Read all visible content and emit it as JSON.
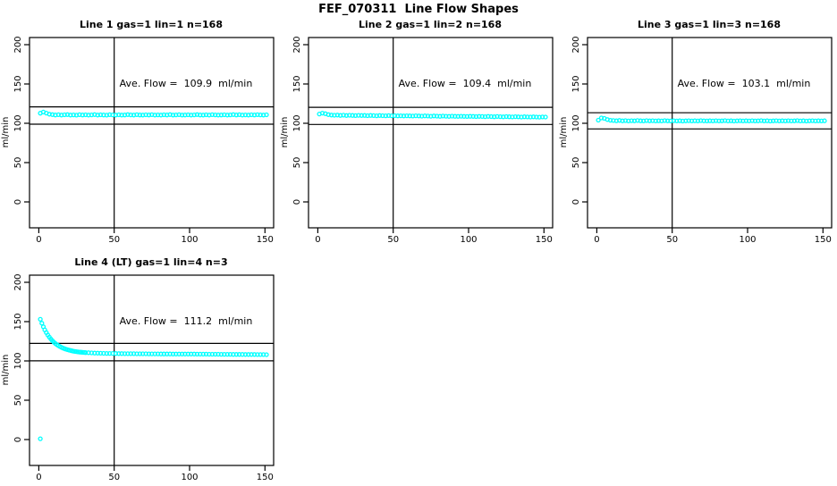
{
  "main_title": "FEF_070311  Line Flow Shapes",
  "colors": {
    "points": "#00FFFF",
    "axis": "#000000",
    "background": "#FFFFFF"
  },
  "chart_data": [
    {
      "type": "scatter",
      "title": "Line 1 gas=1 lin=1 n=168",
      "annotation": "Ave. Flow =  109.9  ml/min",
      "ave_flow_ml_min": 109.9,
      "xlabel": "",
      "ylabel": "ml/min",
      "x_ticks": [
        0,
        50,
        100,
        150
      ],
      "y_ticks": [
        0,
        50,
        100,
        150,
        200
      ],
      "xlim": [
        0,
        150
      ],
      "ylim": [
        0,
        200
      ],
      "grid": false,
      "vline_x": 50,
      "hlines": [
        120.9,
        98.9
      ],
      "points": [
        [
          1,
          112.8
        ],
        [
          3,
          114.3
        ],
        [
          5,
          113.0
        ],
        [
          7,
          111.6
        ],
        [
          9,
          111.0
        ],
        [
          11,
          110.6
        ],
        [
          13,
          110.9
        ],
        [
          15,
          110.4
        ],
        [
          17,
          110.8
        ],
        [
          19,
          111.0
        ],
        [
          21,
          110.5
        ],
        [
          23,
          110.7
        ],
        [
          25,
          110.3
        ],
        [
          27,
          110.9
        ],
        [
          29,
          110.6
        ],
        [
          31,
          110.8
        ],
        [
          33,
          110.4
        ],
        [
          35,
          110.7
        ],
        [
          37,
          111.0
        ],
        [
          39,
          110.5
        ],
        [
          41,
          110.8
        ],
        [
          43,
          110.6
        ],
        [
          45,
          110.3
        ],
        [
          47,
          110.9
        ],
        [
          49,
          110.7
        ],
        [
          51,
          110.5
        ],
        [
          53,
          110.8
        ],
        [
          55,
          110.4
        ],
        [
          57,
          110.6
        ],
        [
          59,
          111.0
        ],
        [
          61,
          110.7
        ],
        [
          63,
          110.5
        ],
        [
          65,
          110.9
        ],
        [
          67,
          110.6
        ],
        [
          69,
          110.4
        ],
        [
          71,
          110.8
        ],
        [
          73,
          110.6
        ],
        [
          75,
          110.9
        ],
        [
          77,
          110.5
        ],
        [
          79,
          110.7
        ],
        [
          81,
          110.4
        ],
        [
          83,
          110.8
        ],
        [
          85,
          110.6
        ],
        [
          87,
          111.0
        ],
        [
          89,
          110.5
        ],
        [
          91,
          110.7
        ],
        [
          93,
          110.9
        ],
        [
          95,
          110.4
        ],
        [
          97,
          110.6
        ],
        [
          99,
          110.8
        ],
        [
          101,
          110.5
        ],
        [
          103,
          110.7
        ],
        [
          105,
          111.0
        ],
        [
          107,
          110.6
        ],
        [
          109,
          110.4
        ],
        [
          111,
          110.8
        ],
        [
          113,
          110.5
        ],
        [
          115,
          110.9
        ],
        [
          117,
          110.7
        ],
        [
          119,
          110.4
        ],
        [
          121,
          110.6
        ],
        [
          123,
          110.8
        ],
        [
          125,
          110.5
        ],
        [
          127,
          110.7
        ],
        [
          129,
          111.0
        ],
        [
          131,
          110.6
        ],
        [
          133,
          110.9
        ],
        [
          135,
          110.4
        ],
        [
          137,
          110.7
        ],
        [
          139,
          110.5
        ],
        [
          141,
          110.8
        ],
        [
          143,
          110.6
        ],
        [
          145,
          110.9
        ],
        [
          147,
          110.7
        ],
        [
          149,
          110.5
        ],
        [
          151,
          110.8
        ]
      ]
    },
    {
      "type": "scatter",
      "title": "Line 2 gas=1 lin=2 n=168",
      "annotation": "Ave. Flow =  109.4  ml/min",
      "ave_flow_ml_min": 109.4,
      "xlabel": "",
      "ylabel": "ml/min",
      "x_ticks": [
        0,
        50,
        100,
        150
      ],
      "y_ticks": [
        0,
        50,
        100,
        150,
        200
      ],
      "xlim": [
        0,
        150
      ],
      "ylim": [
        0,
        200
      ],
      "grid": false,
      "vline_x": 50,
      "hlines": [
        120.3,
        98.5
      ],
      "points": [
        [
          1,
          111.8
        ],
        [
          3,
          112.9
        ],
        [
          5,
          112.2
        ],
        [
          7,
          111.0
        ],
        [
          9,
          110.4
        ],
        [
          11,
          110.2
        ],
        [
          13,
          110.4
        ],
        [
          15,
          110.0
        ],
        [
          17,
          110.3
        ],
        [
          19,
          109.9
        ],
        [
          21,
          110.2
        ],
        [
          23,
          110.0
        ],
        [
          25,
          109.8
        ],
        [
          27,
          110.1
        ],
        [
          29,
          109.9
        ],
        [
          31,
          110.0
        ],
        [
          33,
          109.7
        ],
        [
          35,
          110.0
        ],
        [
          37,
          109.8
        ],
        [
          39,
          109.6
        ],
        [
          41,
          109.9
        ],
        [
          43,
          109.7
        ],
        [
          45,
          109.5
        ],
        [
          47,
          109.8
        ],
        [
          49,
          109.6
        ],
        [
          51,
          109.7
        ],
        [
          53,
          109.4
        ],
        [
          55,
          109.6
        ],
        [
          57,
          109.3
        ],
        [
          59,
          109.5
        ],
        [
          61,
          109.4
        ],
        [
          63,
          109.2
        ],
        [
          65,
          109.5
        ],
        [
          67,
          109.3
        ],
        [
          69,
          109.1
        ],
        [
          71,
          109.4
        ],
        [
          73,
          109.2
        ],
        [
          75,
          109.0
        ],
        [
          77,
          109.3
        ],
        [
          79,
          109.1
        ],
        [
          81,
          108.9
        ],
        [
          83,
          109.2
        ],
        [
          85,
          109.0
        ],
        [
          87,
          108.8
        ],
        [
          89,
          109.1
        ],
        [
          91,
          108.9
        ],
        [
          93,
          108.7
        ],
        [
          95,
          109.0
        ],
        [
          97,
          108.8
        ],
        [
          99,
          108.6
        ],
        [
          101,
          108.9
        ],
        [
          103,
          108.7
        ],
        [
          105,
          108.5
        ],
        [
          107,
          108.8
        ],
        [
          109,
          108.6
        ],
        [
          111,
          108.4
        ],
        [
          113,
          108.7
        ],
        [
          115,
          108.5
        ],
        [
          117,
          108.3
        ],
        [
          119,
          108.6
        ],
        [
          121,
          108.4
        ],
        [
          123,
          108.2
        ],
        [
          125,
          108.5
        ],
        [
          127,
          108.3
        ],
        [
          129,
          108.1
        ],
        [
          131,
          108.4
        ],
        [
          133,
          108.2
        ],
        [
          135,
          108.0
        ],
        [
          137,
          108.3
        ],
        [
          139,
          108.1
        ],
        [
          141,
          107.9
        ],
        [
          143,
          108.2
        ],
        [
          145,
          108.0
        ],
        [
          147,
          107.8
        ],
        [
          149,
          108.1
        ],
        [
          151,
          107.9
        ]
      ]
    },
    {
      "type": "scatter",
      "title": "Line 3 gas=1 lin=3 n=168",
      "annotation": "Ave. Flow =  103.1  ml/min",
      "ave_flow_ml_min": 103.1,
      "xlabel": "",
      "ylabel": "ml/min",
      "x_ticks": [
        0,
        50,
        100,
        150
      ],
      "y_ticks": [
        0,
        50,
        100,
        150,
        200
      ],
      "xlim": [
        0,
        150
      ],
      "ylim": [
        0,
        200
      ],
      "grid": false,
      "vline_x": 50,
      "hlines": [
        113.4,
        92.8
      ],
      "points": [
        [
          1,
          104.0
        ],
        [
          3,
          106.8
        ],
        [
          5,
          106.2
        ],
        [
          7,
          104.8
        ],
        [
          9,
          103.9
        ],
        [
          11,
          103.5
        ],
        [
          13,
          103.2
        ],
        [
          15,
          103.6
        ],
        [
          17,
          103.1
        ],
        [
          19,
          103.4
        ],
        [
          21,
          103.0
        ],
        [
          23,
          103.3
        ],
        [
          25,
          103.1
        ],
        [
          27,
          103.5
        ],
        [
          29,
          103.2
        ],
        [
          31,
          103.0
        ],
        [
          33,
          103.4
        ],
        [
          35,
          103.1
        ],
        [
          37,
          103.3
        ],
        [
          39,
          102.9
        ],
        [
          41,
          103.2
        ],
        [
          43,
          103.0
        ],
        [
          45,
          103.4
        ],
        [
          47,
          103.1
        ],
        [
          49,
          102.9
        ],
        [
          51,
          103.3
        ],
        [
          53,
          103.0
        ],
        [
          55,
          103.2
        ],
        [
          57,
          102.8
        ],
        [
          59,
          103.1
        ],
        [
          61,
          103.3
        ],
        [
          63,
          102.9
        ],
        [
          65,
          103.2
        ],
        [
          67,
          103.0
        ],
        [
          69,
          103.4
        ],
        [
          71,
          103.1
        ],
        [
          73,
          102.9
        ],
        [
          75,
          103.2
        ],
        [
          77,
          103.0
        ],
        [
          79,
          103.3
        ],
        [
          81,
          102.9
        ],
        [
          83,
          103.1
        ],
        [
          85,
          103.4
        ],
        [
          87,
          103.0
        ],
        [
          89,
          103.2
        ],
        [
          91,
          102.8
        ],
        [
          93,
          103.1
        ],
        [
          95,
          103.3
        ],
        [
          97,
          102.9
        ],
        [
          99,
          103.2
        ],
        [
          101,
          103.0
        ],
        [
          103,
          103.3
        ],
        [
          105,
          102.9
        ],
        [
          107,
          103.1
        ],
        [
          109,
          103.4
        ],
        [
          111,
          103.0
        ],
        [
          113,
          103.2
        ],
        [
          115,
          102.8
        ],
        [
          117,
          103.1
        ],
        [
          119,
          103.3
        ],
        [
          121,
          102.9
        ],
        [
          123,
          103.2
        ],
        [
          125,
          103.0
        ],
        [
          127,
          103.3
        ],
        [
          129,
          102.9
        ],
        [
          131,
          103.1
        ],
        [
          133,
          103.4
        ],
        [
          135,
          103.0
        ],
        [
          137,
          103.2
        ],
        [
          139,
          102.8
        ],
        [
          141,
          103.1
        ],
        [
          143,
          103.3
        ],
        [
          145,
          102.9
        ],
        [
          147,
          103.2
        ],
        [
          149,
          103.0
        ],
        [
          151,
          103.2
        ]
      ]
    },
    {
      "type": "scatter",
      "title": "Line 4 (LT) gas=1 lin=4 n=3",
      "annotation": "Ave. Flow =  111.2  ml/min",
      "ave_flow_ml_min": 111.2,
      "xlabel": "",
      "ylabel": "ml/min",
      "x_ticks": [
        0,
        50,
        100,
        150
      ],
      "y_ticks": [
        0,
        50,
        100,
        150,
        200
      ],
      "xlim": [
        0,
        150
      ],
      "ylim": [
        0,
        200
      ],
      "grid": false,
      "vline_x": 50,
      "hlines": [
        122.3,
        100.1
      ],
      "points": [
        [
          1,
          1.0
        ],
        [
          1,
          153.0
        ],
        [
          2,
          147.9
        ],
        [
          3,
          143.4
        ],
        [
          4,
          139.5
        ],
        [
          5,
          136.0
        ],
        [
          6,
          132.9
        ],
        [
          7,
          130.2
        ],
        [
          8,
          127.8
        ],
        [
          9,
          125.7
        ],
        [
          10,
          123.8
        ],
        [
          11,
          122.2
        ],
        [
          12,
          120.7
        ],
        [
          13,
          119.4
        ],
        [
          14,
          118.3
        ],
        [
          15,
          117.3
        ],
        [
          16,
          116.4
        ],
        [
          17,
          115.6
        ],
        [
          18,
          114.9
        ],
        [
          19,
          114.3
        ],
        [
          20,
          113.7
        ],
        [
          21,
          113.3
        ],
        [
          22,
          112.8
        ],
        [
          23,
          112.4
        ],
        [
          24,
          112.1
        ],
        [
          25,
          111.8
        ],
        [
          26,
          111.5
        ],
        [
          27,
          111.3
        ],
        [
          28,
          111.1
        ],
        [
          29,
          110.9
        ],
        [
          30,
          110.8
        ],
        [
          31,
          110.6
        ],
        [
          33,
          110.4
        ],
        [
          35,
          110.2
        ],
        [
          37,
          110.0
        ],
        [
          39,
          109.9
        ],
        [
          41,
          109.8
        ],
        [
          43,
          109.7
        ],
        [
          45,
          109.6
        ],
        [
          47,
          109.5
        ],
        [
          49,
          109.5
        ],
        [
          51,
          109.4
        ],
        [
          53,
          109.3
        ],
        [
          55,
          109.3
        ],
        [
          57,
          109.2
        ],
        [
          59,
          109.2
        ],
        [
          61,
          109.2
        ],
        [
          63,
          109.2
        ],
        [
          65,
          109.1
        ],
        [
          67,
          109.1
        ],
        [
          69,
          109.1
        ],
        [
          71,
          109.1
        ],
        [
          73,
          109.0
        ],
        [
          75,
          109.0
        ],
        [
          77,
          109.0
        ],
        [
          79,
          109.0
        ],
        [
          81,
          108.9
        ],
        [
          83,
          108.9
        ],
        [
          85,
          108.9
        ],
        [
          87,
          108.9
        ],
        [
          89,
          108.8
        ],
        [
          91,
          108.8
        ],
        [
          93,
          108.8
        ],
        [
          95,
          108.8
        ],
        [
          97,
          108.7
        ],
        [
          99,
          108.7
        ],
        [
          101,
          108.7
        ],
        [
          103,
          108.7
        ],
        [
          105,
          108.6
        ],
        [
          107,
          108.6
        ],
        [
          109,
          108.6
        ],
        [
          111,
          108.6
        ],
        [
          113,
          108.5
        ],
        [
          115,
          108.5
        ],
        [
          117,
          108.5
        ],
        [
          119,
          108.5
        ],
        [
          121,
          108.4
        ],
        [
          123,
          108.4
        ],
        [
          125,
          108.4
        ],
        [
          127,
          108.4
        ],
        [
          129,
          108.3
        ],
        [
          131,
          108.3
        ],
        [
          133,
          108.3
        ],
        [
          135,
          108.3
        ],
        [
          137,
          108.2
        ],
        [
          139,
          108.2
        ],
        [
          141,
          108.2
        ],
        [
          143,
          108.2
        ],
        [
          145,
          108.1
        ],
        [
          147,
          108.1
        ],
        [
          149,
          108.1
        ],
        [
          151,
          108.0
        ]
      ]
    }
  ]
}
